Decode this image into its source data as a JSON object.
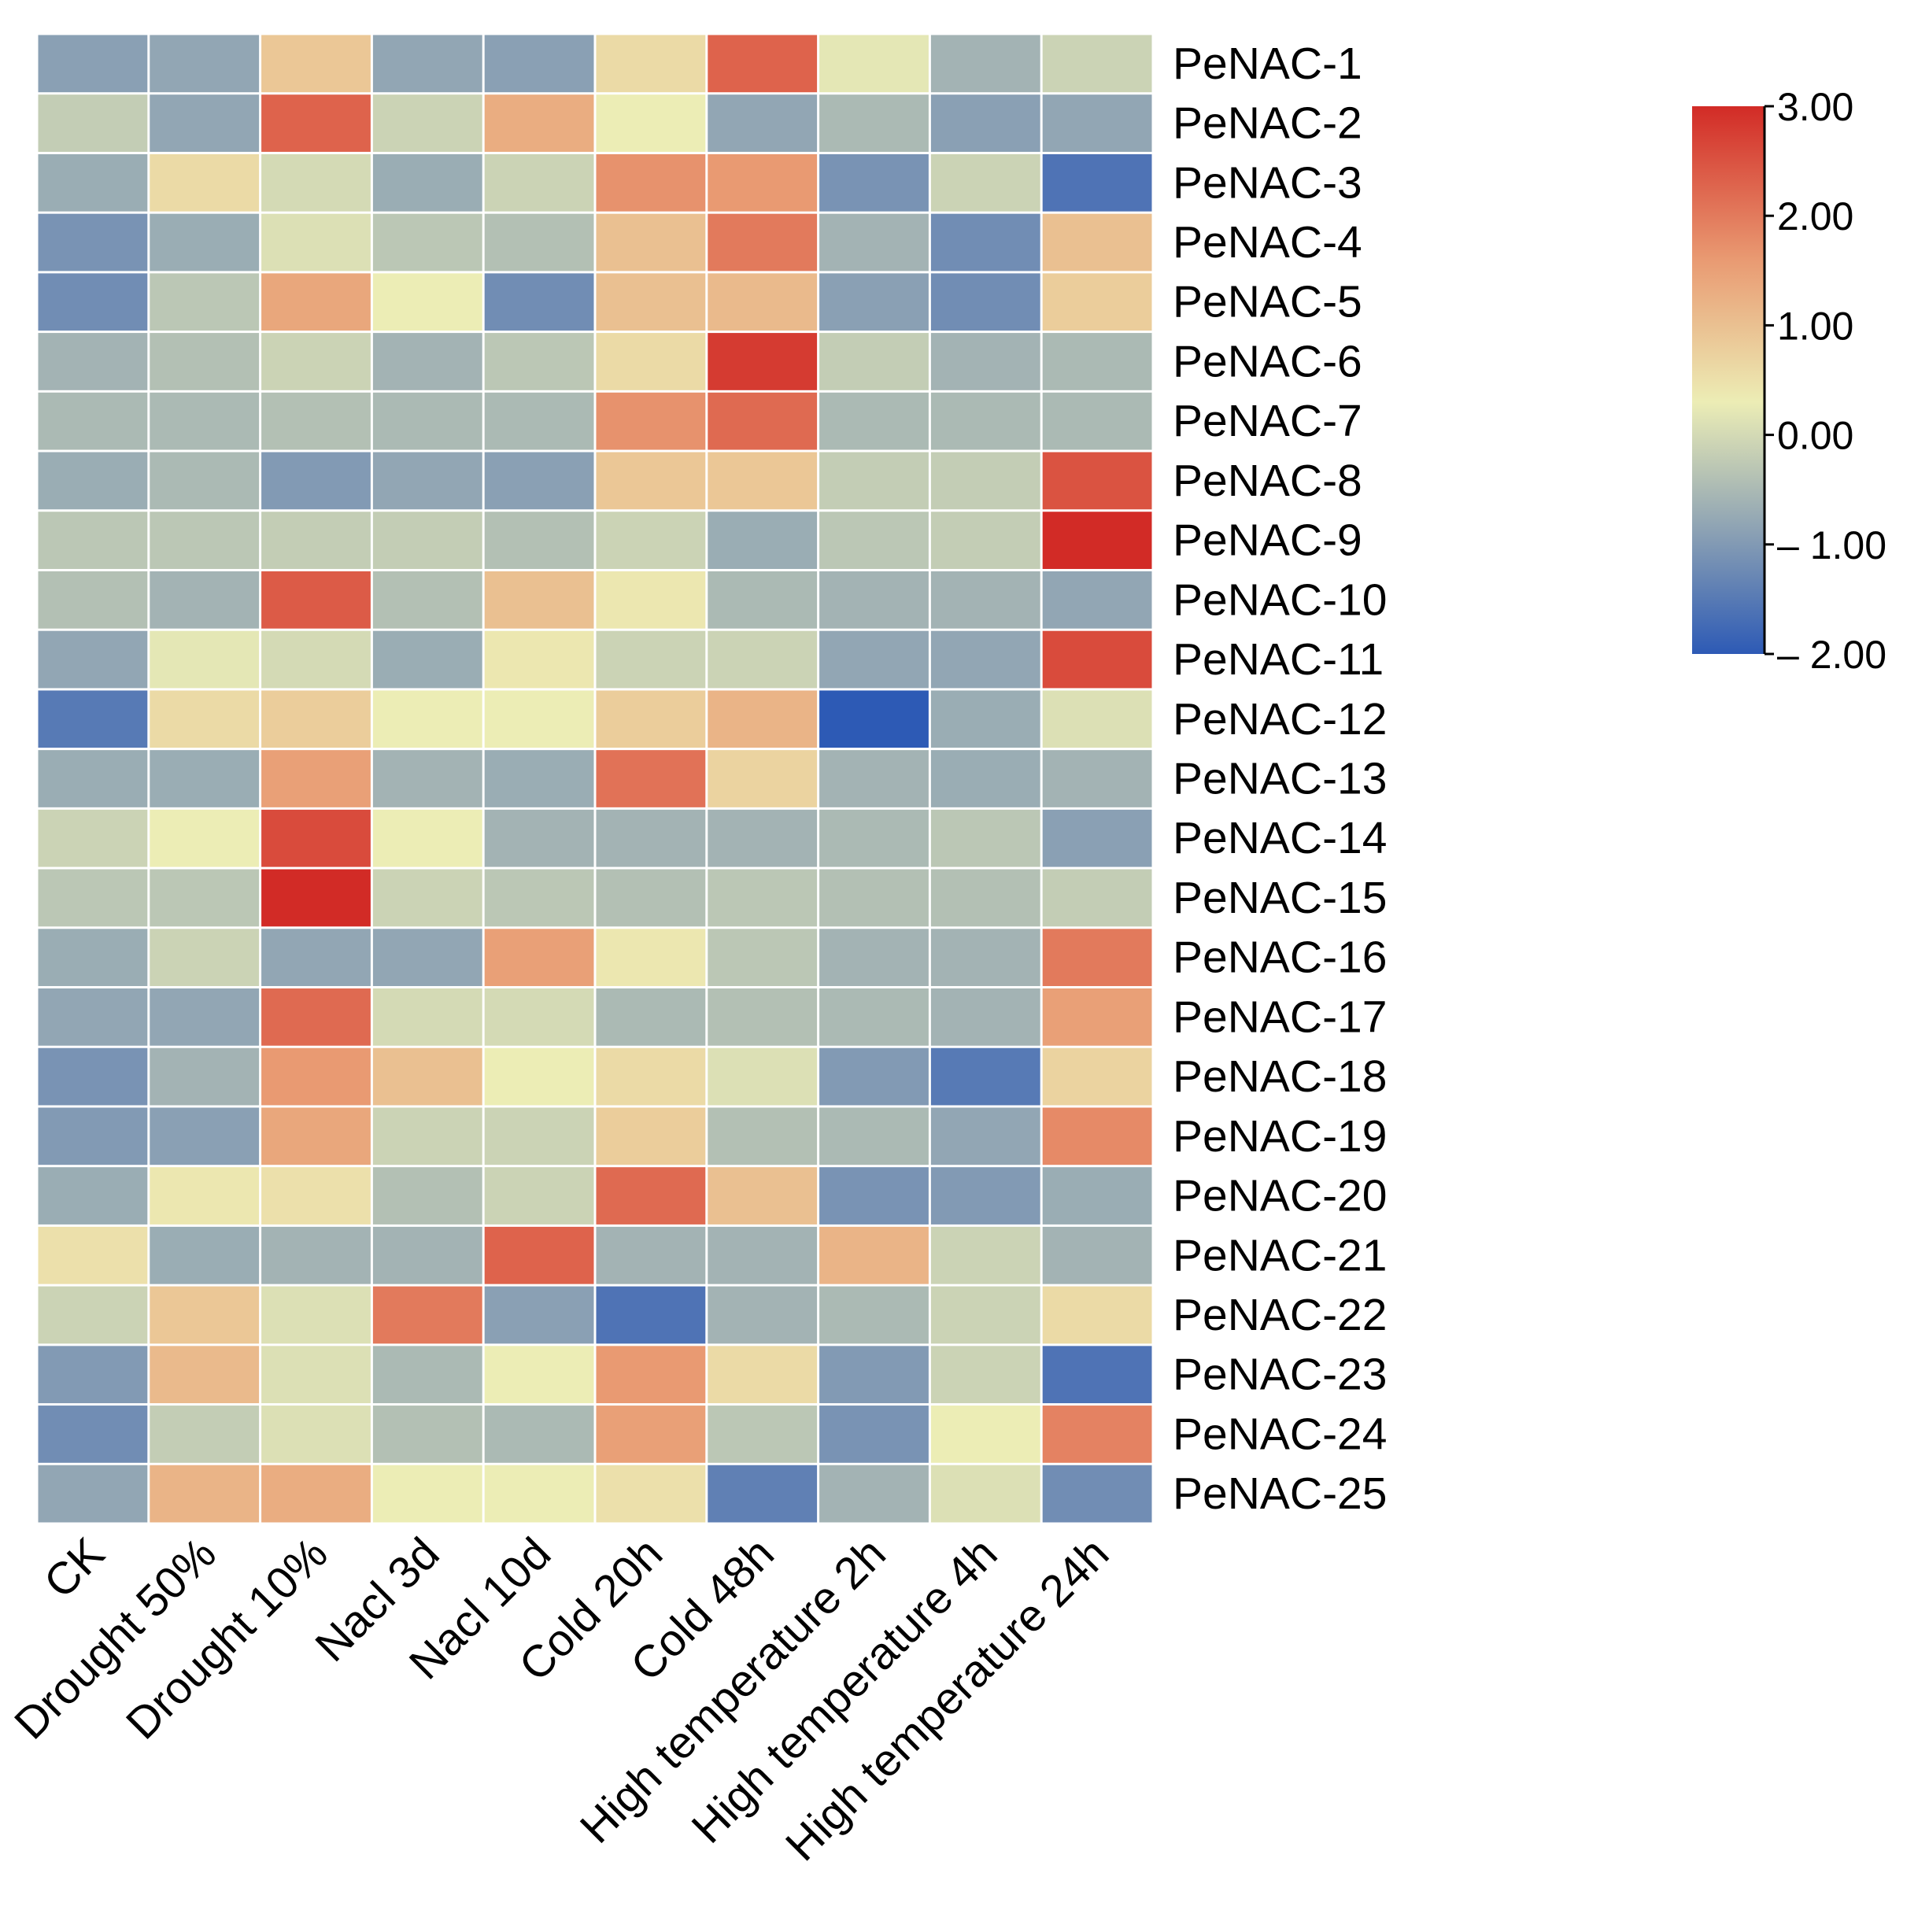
{
  "chart_data": {
    "type": "heatmap",
    "columns": [
      "CK",
      "Drought 50%",
      "Drought 10%",
      "Nacl 3d",
      "Nacl 10d",
      "Cold 20h",
      "Cold 48h",
      "High temperature 2h",
      "High temperature 4h",
      "High temperature 24h"
    ],
    "rows": [
      "PeNAC-1",
      "PeNAC-2",
      "PeNAC-3",
      "PeNAC-4",
      "PeNAC-5",
      "PeNAC-6",
      "PeNAC-7",
      "PeNAC-8",
      "PeNAC-9",
      "PeNAC-10",
      "PeNAC-11",
      "PeNAC-12",
      "PeNAC-13",
      "PeNAC-14",
      "PeNAC-15",
      "PeNAC-16",
      "PeNAC-17",
      "PeNAC-18",
      "PeNAC-19",
      "PeNAC-20",
      "PeNAC-21",
      "PeNAC-22",
      "PeNAC-23",
      "PeNAC-24",
      "PeNAC-25"
    ],
    "values": [
      [
        -0.9,
        -0.8,
        0.9,
        -0.8,
        -0.9,
        0.6,
        2.3,
        0.2,
        -0.6,
        -0.1
      ],
      [
        -0.2,
        -0.8,
        2.3,
        -0.1,
        1.3,
        0.3,
        -0.8,
        -0.5,
        -0.9,
        -0.8
      ],
      [
        -0.7,
        0.6,
        0.0,
        -0.7,
        -0.1,
        1.7,
        1.6,
        -1.1,
        -0.1,
        -1.6
      ],
      [
        -1.1,
        -0.7,
        0.1,
        -0.3,
        -0.4,
        1.0,
        2.0,
        -0.6,
        -1.2,
        1.0
      ],
      [
        -1.2,
        -0.3,
        1.4,
        0.3,
        -1.2,
        1.0,
        1.1,
        -0.9,
        -1.2,
        0.8
      ],
      [
        -0.6,
        -0.4,
        -0.1,
        -0.6,
        -0.3,
        0.6,
        2.8,
        -0.2,
        -0.6,
        -0.5
      ],
      [
        -0.5,
        -0.5,
        -0.4,
        -0.5,
        -0.5,
        1.7,
        2.2,
        -0.5,
        -0.5,
        -0.5
      ],
      [
        -0.7,
        -0.5,
        -1.0,
        -0.8,
        -0.9,
        0.9,
        0.9,
        -0.2,
        -0.2,
        2.5
      ],
      [
        -0.3,
        -0.3,
        -0.2,
        -0.2,
        -0.4,
        -0.1,
        -0.7,
        -0.3,
        -0.2,
        3.0
      ],
      [
        -0.4,
        -0.6,
        2.4,
        -0.4,
        1.0,
        0.4,
        -0.5,
        -0.6,
        -0.6,
        -0.8
      ],
      [
        -0.8,
        0.2,
        0.0,
        -0.7,
        0.4,
        -0.1,
        -0.1,
        -0.8,
        -0.8,
        2.6
      ],
      [
        -1.5,
        0.6,
        0.8,
        0.3,
        0.3,
        0.8,
        1.2,
        -2.0,
        -0.7,
        0.1
      ],
      [
        -0.7,
        -0.7,
        1.5,
        -0.6,
        -0.7,
        2.1,
        0.7,
        -0.6,
        -0.7,
        -0.6
      ],
      [
        -0.1,
        0.3,
        2.6,
        0.3,
        -0.6,
        -0.6,
        -0.6,
        -0.5,
        -0.3,
        -0.9
      ],
      [
        -0.3,
        -0.3,
        3.0,
        -0.1,
        -0.3,
        -0.4,
        -0.3,
        -0.4,
        -0.4,
        -0.2
      ],
      [
        -0.7,
        -0.1,
        -0.8,
        -0.8,
        1.5,
        0.4,
        -0.3,
        -0.6,
        -0.6,
        2.0
      ],
      [
        -0.8,
        -0.8,
        2.2,
        0.0,
        0.0,
        -0.5,
        -0.4,
        -0.5,
        -0.6,
        1.5
      ],
      [
        -1.1,
        -0.6,
        1.6,
        1.0,
        0.3,
        0.6,
        0.1,
        -1.0,
        -1.5,
        0.7
      ],
      [
        -1.0,
        -0.9,
        1.4,
        -0.1,
        -0.1,
        0.8,
        -0.4,
        -0.5,
        -0.8,
        1.8
      ],
      [
        -0.7,
        0.4,
        0.5,
        -0.4,
        -0.1,
        2.2,
        1.0,
        -1.1,
        -1.0,
        -0.7
      ],
      [
        0.5,
        -0.7,
        -0.6,
        -0.6,
        2.3,
        -0.6,
        -0.6,
        1.2,
        -0.1,
        -0.6
      ],
      [
        -0.1,
        0.9,
        0.1,
        2.0,
        -0.9,
        -1.6,
        -0.6,
        -0.5,
        -0.1,
        0.6
      ],
      [
        -1.0,
        1.1,
        0.1,
        -0.5,
        0.3,
        1.6,
        0.6,
        -1.0,
        -0.1,
        -1.6
      ],
      [
        -1.2,
        -0.2,
        0.1,
        -0.4,
        -0.5,
        1.5,
        -0.3,
        -1.1,
        0.3,
        1.9
      ],
      [
        -0.8,
        1.2,
        1.3,
        0.3,
        0.3,
        0.5,
        -1.4,
        -0.6,
        0.1,
        -1.2
      ]
    ],
    "colorbar": {
      "min": -2,
      "max": 3,
      "ticks": [
        "3.00",
        "2.00",
        "1.00",
        "0.00",
        "– 1.00",
        "– 2.00"
      ],
      "tick_values": [
        3,
        2,
        1,
        0,
        -1,
        -2
      ],
      "stops": [
        "#2d5ab5",
        "#8aa0b4",
        "#ecedb5",
        "#e99a72",
        "#d22b26"
      ],
      "stop_values": [
        -2,
        -0.9,
        0.3,
        1.6,
        3
      ]
    },
    "legend_position": "top-right"
  }
}
